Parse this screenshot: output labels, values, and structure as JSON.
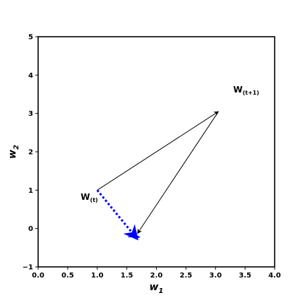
{
  "chart_data": {
    "type": "line",
    "title": "",
    "xlabel": {
      "base": "w",
      "sub": "1"
    },
    "ylabel": {
      "base": "w",
      "sub": "2"
    },
    "xlim": [
      0.0,
      4.0
    ],
    "ylim": [
      -1,
      5
    ],
    "xticks": [
      "0.0",
      "0.5",
      "1.0",
      "1.5",
      "2.0",
      "2.5",
      "3.0",
      "3.5",
      "4.0"
    ],
    "yticks": [
      "−1",
      "0",
      "1",
      "2",
      "3",
      "4",
      "5"
    ],
    "grid": false,
    "legend": "none",
    "arrows": [
      {
        "from": [
          1.0,
          1.0
        ],
        "to": [
          3.05,
          3.05
        ],
        "color": "#000000",
        "style": "solid"
      },
      {
        "from": [
          3.05,
          3.05
        ],
        "to": [
          1.68,
          -0.13
        ],
        "color": "#000000",
        "style": "solid"
      },
      {
        "from": [
          1.0,
          1.0
        ],
        "to": [
          1.68,
          -0.28
        ],
        "color": "#0000ff",
        "style": "dotted"
      },
      {
        "from": [
          1.52,
          -0.22
        ],
        "to": [
          1.72,
          -0.22
        ],
        "color": "#0000ff",
        "style": "solid"
      }
    ],
    "annotations": [
      {
        "base": "W",
        "sub": "(t)",
        "x": 0.72,
        "y": 0.75
      },
      {
        "base": "W",
        "sub": "(t+1)",
        "x": 3.3,
        "y": 3.55
      }
    ]
  }
}
